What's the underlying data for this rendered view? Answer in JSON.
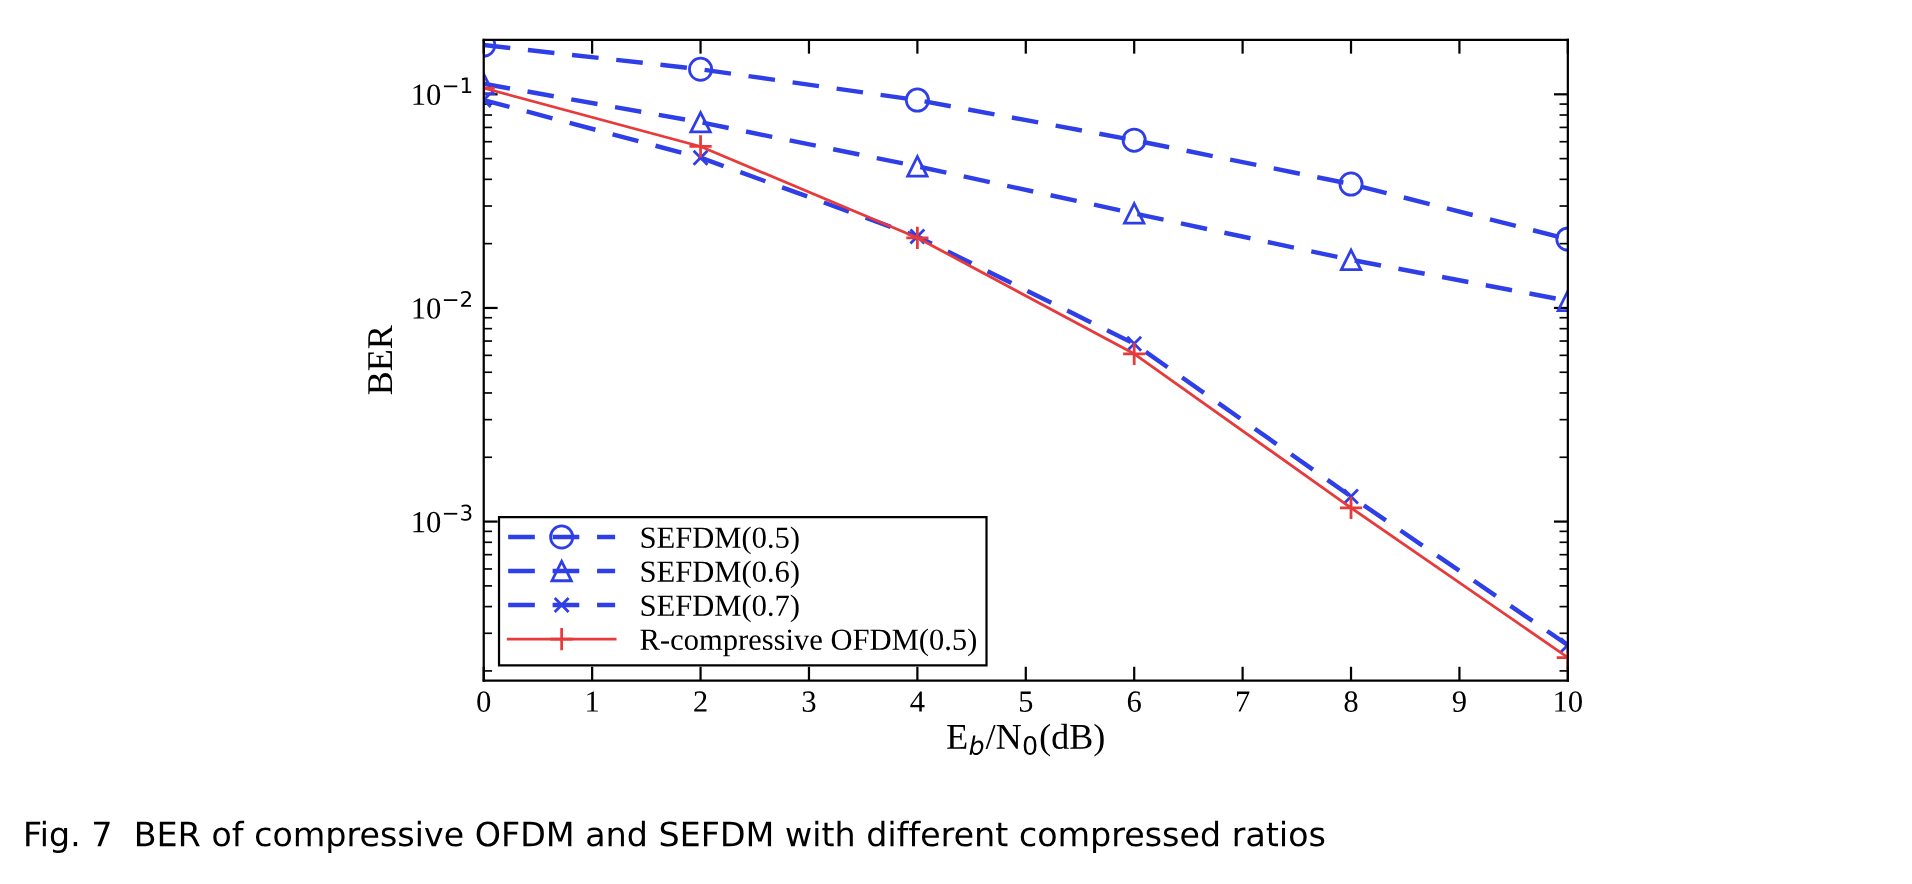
{
  "chart_data": {
    "type": "line",
    "log": "y",
    "xlabel": "E$_{b}$/N$_{0}$(dB)",
    "ylabel": "BER",
    "annotations": [
      "Fig. 7  BER of compressive OFDM and SEFDM with different compressed ratios"
    ],
    "x": [
      0,
      2,
      4,
      6,
      8,
      10
    ],
    "xlim": [
      0,
      10
    ],
    "xticks": [
      0,
      1,
      2,
      3,
      4,
      5,
      6,
      7,
      8,
      9,
      10
    ],
    "ylim": [
      0.00018,
      0.18
    ],
    "yticks": [
      {
        "value": 0.001,
        "label": "10$^{−3}$"
      },
      {
        "value": 0.01,
        "label": "10$^{−2}$"
      },
      {
        "value": 0.1,
        "label": "10$^{−1}$"
      }
    ],
    "grid": false,
    "legend": "bottom left",
    "series": [
      {
        "name": "SEFDM(0.5)",
        "color": "#2f3fe8",
        "marker": "circle",
        "line_style": "dashed",
        "values": [
          0.17,
          0.131,
          0.094,
          0.061,
          0.038,
          0.021
        ]
      },
      {
        "name": "SEFDM(0.6)",
        "color": "#2f3fe8",
        "marker": "triangle",
        "line_style": "dashed",
        "values": [
          0.112,
          0.074,
          0.046,
          0.0277,
          0.0168,
          0.0108
        ]
      },
      {
        "name": "SEFDM(0.7)",
        "color": "#2f3fe8",
        "marker": "cross",
        "line_style": "dashed",
        "values": [
          0.094,
          0.0505,
          0.0216,
          0.0068,
          0.00131,
          0.000264
        ]
      },
      {
        "name": "R-compressive OFDM(0.5)",
        "color": "#e83a3a",
        "marker": "plus",
        "line_style": "solid",
        "values": [
          0.107,
          0.057,
          0.0213,
          0.0061,
          0.00116,
          0.000231
        ]
      }
    ]
  }
}
